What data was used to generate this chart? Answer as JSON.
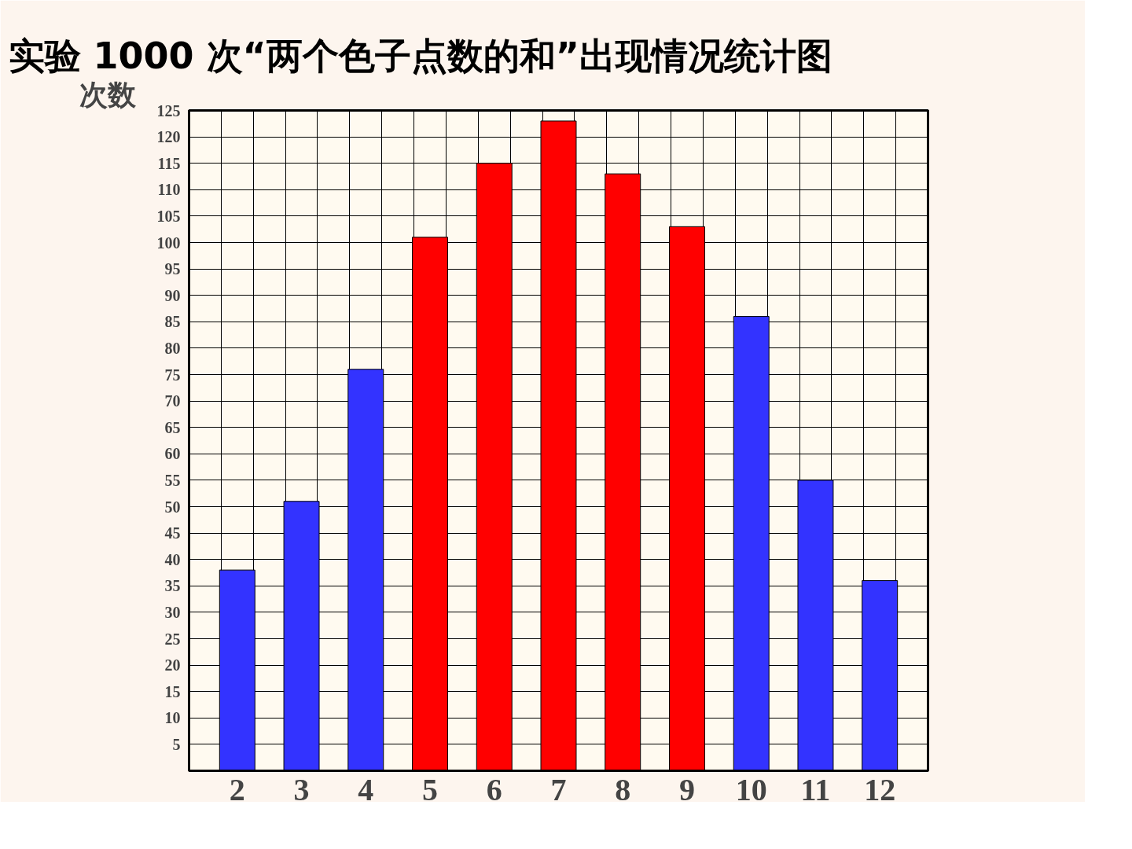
{
  "chart_data": {
    "type": "bar",
    "title": "实验 1000 次“两个色子点数的和”出现情况统计图",
    "ylabel": "次数",
    "categories": [
      "2",
      "3",
      "4",
      "5",
      "6",
      "7",
      "8",
      "9",
      "10",
      "11",
      "12"
    ],
    "values": [
      38,
      51,
      76,
      101,
      115,
      123,
      113,
      103,
      86,
      55,
      36
    ],
    "colors": [
      "#3333ff",
      "#3333ff",
      "#3333ff",
      "#ff0000",
      "#ff0000",
      "#ff0000",
      "#ff0000",
      "#ff0000",
      "#3333ff",
      "#3333ff",
      "#3333ff"
    ],
    "ylim": [
      0,
      125
    ],
    "yticks": [
      5,
      10,
      15,
      20,
      25,
      30,
      35,
      40,
      45,
      50,
      55,
      60,
      65,
      70,
      75,
      80,
      85,
      90,
      95,
      100,
      105,
      110,
      115,
      120,
      125
    ],
    "grid": true
  }
}
